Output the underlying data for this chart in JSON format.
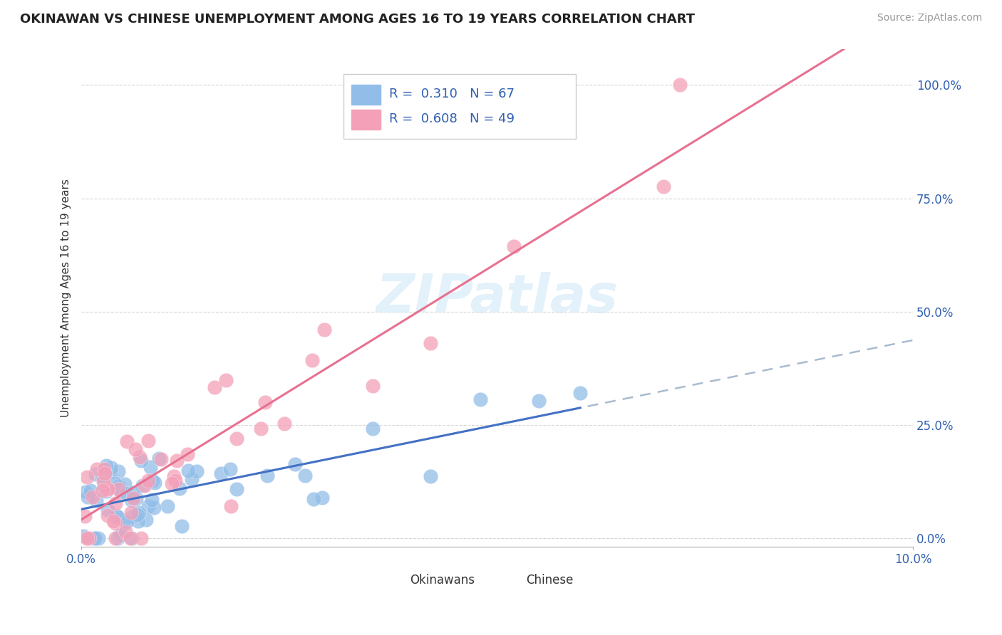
{
  "title": "OKINAWAN VS CHINESE UNEMPLOYMENT AMONG AGES 16 TO 19 YEARS CORRELATION CHART",
  "source_text": "Source: ZipAtlas.com",
  "ylabel": "Unemployment Among Ages 16 to 19 years",
  "xlim": [
    0.0,
    0.1
  ],
  "ylim": [
    -0.02,
    1.08
  ],
  "xtick_vals": [
    0.0,
    0.1
  ],
  "xtick_labels": [
    "0.0%",
    "10.0%"
  ],
  "ytick_vals": [
    0.0,
    0.25,
    0.5,
    0.75,
    1.0
  ],
  "ytick_labels": [
    "0.0%",
    "25.0%",
    "50.0%",
    "75.0%",
    "100.0%"
  ],
  "okinawan_color": "#92BDE8",
  "chinese_color": "#F4A0B8",
  "okinawan_line_color": "#4472C4",
  "okinawan_dash_color": "#AABBD0",
  "chinese_line_color": "#E87090",
  "R_okinawan": 0.31,
  "N_okinawan": 67,
  "R_chinese": 0.608,
  "N_chinese": 49,
  "watermark_text": "ZIPatlas",
  "legend_label_okinawan": "Okinawans",
  "legend_label_chinese": "Chinese"
}
